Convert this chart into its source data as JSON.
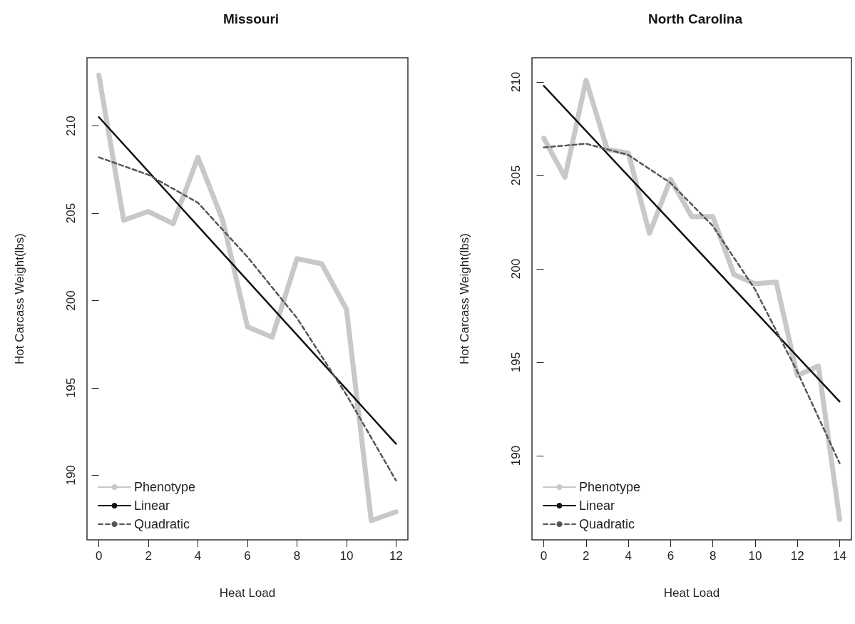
{
  "chart_data": [
    {
      "type": "line",
      "title": "Missouri",
      "xlabel": "Heat Load",
      "ylabel": "Hot Carcass Weight(lbs)",
      "xlim": [
        -0.48,
        12.48
      ],
      "ylim": [
        186.3,
        213.9
      ],
      "xticks": [
        0,
        2,
        4,
        6,
        8,
        10,
        12
      ],
      "yticks": [
        190,
        195,
        200,
        205,
        210
      ],
      "grid": false,
      "legend": "bottom left",
      "marker": "none",
      "series": [
        {
          "name": "Phenotype",
          "color": "#c8c8c8",
          "line_style": "solid",
          "x": [
            0,
            1,
            2,
            3,
            4,
            5,
            6,
            7,
            8,
            9,
            10,
            11,
            12
          ],
          "values": [
            212.9,
            204.6,
            205.1,
            204.4,
            208.2,
            204.6,
            198.5,
            197.9,
            202.4,
            202.1,
            199.5,
            187.4,
            187.9
          ]
        },
        {
          "name": "Linear",
          "color": "#111111",
          "line_style": "solid",
          "x": [
            0,
            12
          ],
          "values": [
            210.5,
            191.8
          ]
        },
        {
          "name": "Quadratic",
          "color": "#555555",
          "line_style": "dashed",
          "x": [
            0,
            2,
            4,
            6,
            8,
            10,
            12
          ],
          "values": [
            208.2,
            207.2,
            205.6,
            202.5,
            199.0,
            194.6,
            189.7
          ]
        }
      ]
    },
    {
      "type": "line",
      "title": "North Carolina",
      "xlabel": "Heat Load",
      "ylabel": "Hot Carcass Weight(lbs)",
      "xlim": [
        -0.56,
        14.56
      ],
      "ylim": [
        185.5,
        211.3
      ],
      "xticks": [
        0,
        2,
        4,
        6,
        8,
        10,
        12,
        14
      ],
      "yticks": [
        190,
        195,
        200,
        205,
        210
      ],
      "grid": false,
      "legend": "bottom left",
      "marker": "none",
      "series": [
        {
          "name": "Phenotype",
          "color": "#c8c8c8",
          "line_style": "solid",
          "x": [
            0,
            1,
            2,
            3,
            4,
            5,
            6,
            7,
            8,
            9,
            10,
            11,
            12,
            13,
            14
          ],
          "values": [
            207.0,
            204.9,
            210.1,
            206.4,
            206.2,
            201.9,
            204.8,
            202.8,
            202.8,
            199.7,
            199.2,
            199.3,
            194.3,
            194.8,
            186.6
          ]
        },
        {
          "name": "Linear",
          "color": "#111111",
          "line_style": "solid",
          "x": [
            0,
            14
          ],
          "values": [
            209.8,
            192.9
          ]
        },
        {
          "name": "Quadratic",
          "color": "#555555",
          "line_style": "dashed",
          "x": [
            0,
            2,
            4,
            6,
            8,
            10,
            12,
            14
          ],
          "values": [
            206.5,
            206.7,
            206.1,
            204.6,
            202.3,
            198.9,
            194.5,
            189.6
          ]
        }
      ]
    }
  ]
}
